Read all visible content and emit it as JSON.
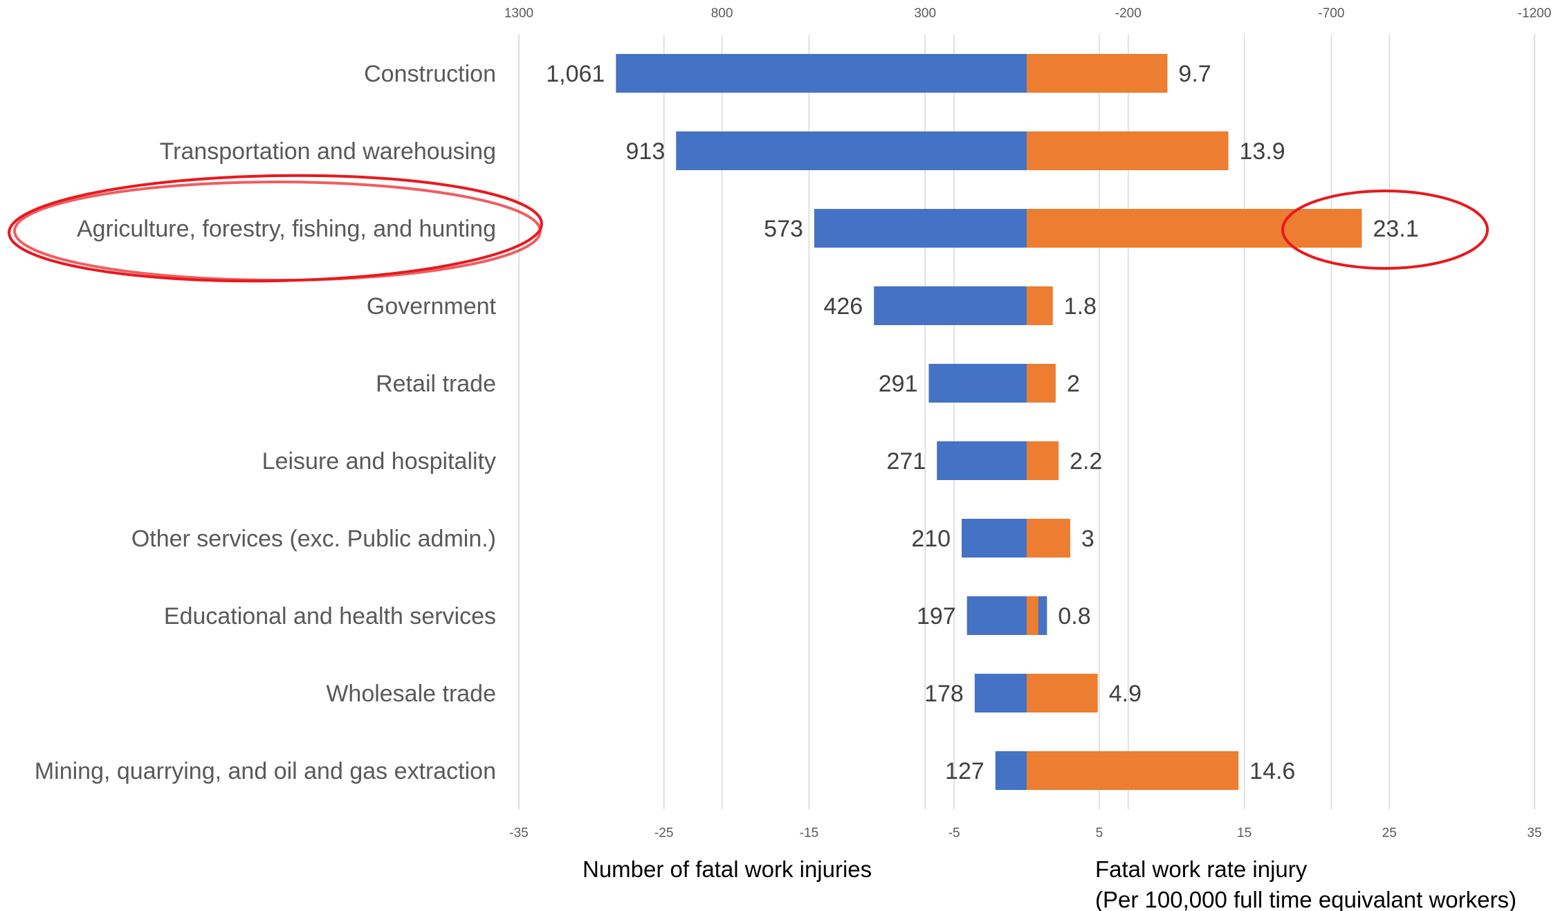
{
  "chart_data": {
    "type": "bar",
    "orientation": "horizontal",
    "categories": [
      "Construction",
      "Transportation and warehousing",
      "Agriculture, forestry, fishing, and hunting",
      "Government",
      "Retail trade",
      "Leisure and hospitality",
      "Other services (exc. Public admin.)",
      "Educational and health services",
      "Wholesale trade",
      "Mining, quarrying, and oil and gas extraction"
    ],
    "series": [
      {
        "name": "Number of fatal work injuries",
        "color": "#4472c4",
        "axis": "top",
        "values": [
          1061,
          913,
          573,
          426,
          291,
          271,
          210,
          197,
          178,
          127
        ],
        "labels": [
          "1,061",
          "913",
          "573",
          "426",
          "291",
          "271",
          "210",
          "197",
          "178",
          "127"
        ]
      },
      {
        "name": "Fatal work rate injury",
        "color": "#ed7d31",
        "axis": "bottom",
        "values": [
          9.7,
          13.9,
          23.1,
          1.8,
          2,
          2.2,
          3,
          0.8,
          4.9,
          14.6
        ],
        "labels": [
          "9.7",
          "13.9",
          "23.1",
          "1.8",
          "2",
          "2.2",
          "3",
          "0.8",
          "4.9",
          "14.6"
        ]
      }
    ],
    "top_axis": {
      "ticks": [
        1300,
        800,
        300,
        -200,
        -700,
        -1200
      ],
      "tick_labels": [
        "1300",
        "800",
        "300",
        "-200",
        "-700",
        "-1200"
      ],
      "range": [
        1300,
        -1200
      ]
    },
    "bottom_axis": {
      "ticks": [
        -35,
        -25,
        -15,
        -5,
        5,
        15,
        25,
        35
      ],
      "tick_labels": [
        "-35",
        "-25",
        "-15",
        "-5",
        "5",
        "15",
        "25",
        "35"
      ],
      "range": [
        -35,
        35
      ]
    },
    "xlabel_left": "Number of fatal work injuries",
    "xlabel_right_line1": "Fatal work rate injury",
    "xlabel_right_line2": "(Per 100,000 full time equivalant workers)",
    "grid": true,
    "highlighted_category": "Agriculture, forestry, fishing, and hunting",
    "highlight_color": "#e8191e"
  }
}
